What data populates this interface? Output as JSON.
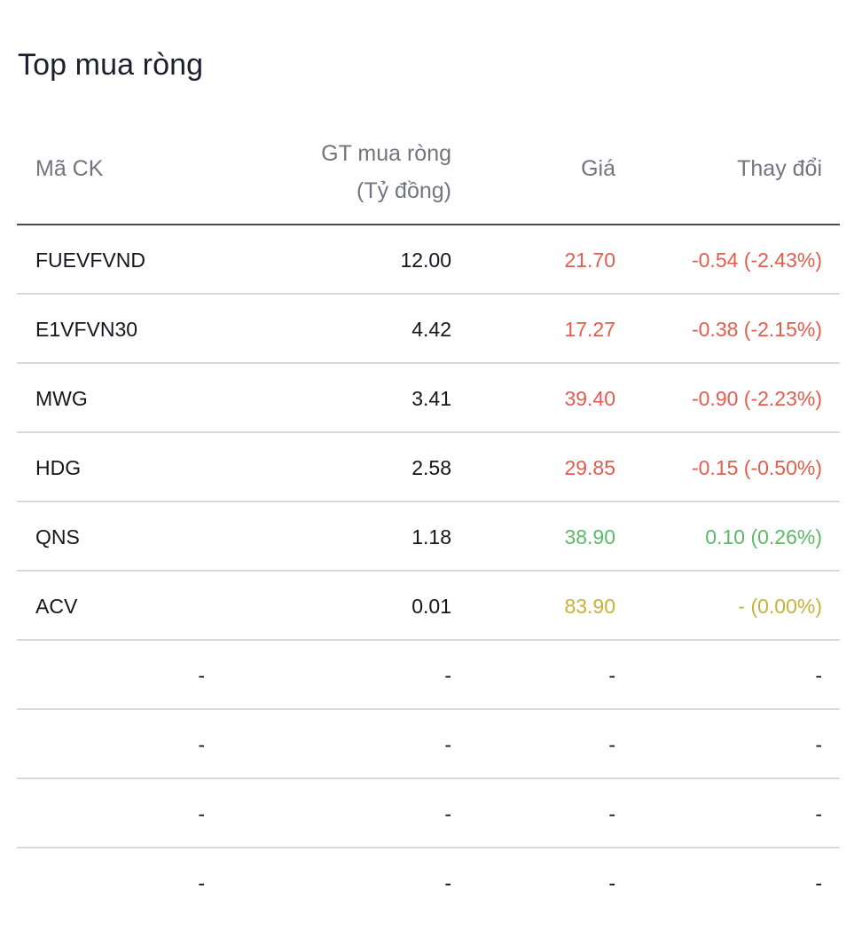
{
  "title": "Top mua ròng",
  "colors": {
    "down": "#e35d4f",
    "up": "#5cba66",
    "flat": "#c8b23a"
  },
  "columns": {
    "code": "Mã CK",
    "value_line1": "GT mua ròng",
    "value_line2": "(Tỷ đồng)",
    "price": "Giá",
    "change": "Thay đổi"
  },
  "rows": [
    {
      "code": "FUEVFVND",
      "value": "12.00",
      "price": "21.70",
      "change": "-0.54 (-2.43%)",
      "trend": "down"
    },
    {
      "code": "E1VFVN30",
      "value": "4.42",
      "price": "17.27",
      "change": "-0.38 (-2.15%)",
      "trend": "down"
    },
    {
      "code": "MWG",
      "value": "3.41",
      "price": "39.40",
      "change": "-0.90 (-2.23%)",
      "trend": "down"
    },
    {
      "code": "HDG",
      "value": "2.58",
      "price": "29.85",
      "change": "-0.15 (-0.50%)",
      "trend": "down"
    },
    {
      "code": "QNS",
      "value": "1.18",
      "price": "38.90",
      "change": "0.10 (0.26%)",
      "trend": "up"
    },
    {
      "code": "ACV",
      "value": "0.01",
      "price": "83.90",
      "change": "- (0.00%)",
      "trend": "flat"
    },
    {
      "code": "-",
      "value": "-",
      "price": "-",
      "change": "-",
      "trend": "neutral",
      "placeholder": true
    },
    {
      "code": "-",
      "value": "-",
      "price": "-",
      "change": "-",
      "trend": "neutral",
      "placeholder": true
    },
    {
      "code": "-",
      "value": "-",
      "price": "-",
      "change": "-",
      "trend": "neutral",
      "placeholder": true
    },
    {
      "code": "-",
      "value": "-",
      "price": "-",
      "change": "-",
      "trend": "neutral",
      "placeholder": true
    }
  ]
}
